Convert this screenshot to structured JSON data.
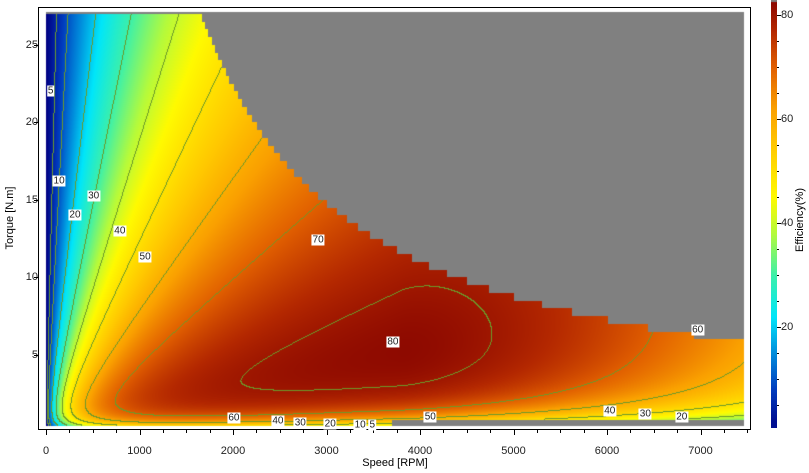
{
  "chart_data": {
    "type": "heatmap",
    "title": "",
    "xlabel": "Speed [RPM]",
    "ylabel": "Torque [N.m]",
    "colorbar_label": "Efficiency(%)",
    "xlim": [
      0,
      7500
    ],
    "ylim": [
      0,
      27.5
    ],
    "clim": [
      2,
      82
    ],
    "xticks": [
      "0",
      "1000",
      "2000",
      "3000",
      "4000",
      "5000",
      "6000",
      "7000"
    ],
    "yticks": [
      "5",
      "10",
      "15",
      "20",
      "25"
    ],
    "cticks": [
      "20",
      "40",
      "60",
      "80"
    ],
    "contour_levels": [
      5,
      10,
      20,
      30,
      40,
      50,
      60,
      70,
      80
    ],
    "peak_efficiency": {
      "speed": 3800,
      "torque": 5,
      "value": 83
    },
    "max_torque": 27.3,
    "max_power_constant": 45000,
    "invalid_color": "#808080",
    "contour_color": "#6b9a2a",
    "contour_labels": [
      {
        "text": "5",
        "x": 50,
        "y": 22
      },
      {
        "text": "10",
        "x": 140,
        "y": 16.2
      },
      {
        "text": "20",
        "x": 310,
        "y": 14
      },
      {
        "text": "30",
        "x": 510,
        "y": 15.2
      },
      {
        "text": "40",
        "x": 790,
        "y": 13
      },
      {
        "text": "50",
        "x": 1060,
        "y": 11.3
      },
      {
        "text": "70",
        "x": 2910,
        "y": 12.4
      },
      {
        "text": "80",
        "x": 3710,
        "y": 5.8
      },
      {
        "text": "60",
        "x": 6970,
        "y": 6.6
      },
      {
        "text": "60",
        "x": 2010,
        "y": 0.9
      },
      {
        "text": "40",
        "x": 2480,
        "y": 0.7
      },
      {
        "text": "30",
        "x": 2720,
        "y": 0.6
      },
      {
        "text": "20",
        "x": 3040,
        "y": 0.5
      },
      {
        "text": "10",
        "x": 3360,
        "y": 0.45
      },
      {
        "text": "5",
        "x": 3490,
        "y": 0.45
      },
      {
        "text": "50",
        "x": 4110,
        "y": 1.0
      },
      {
        "text": "40",
        "x": 6030,
        "y": 1.35
      },
      {
        "text": "30",
        "x": 6410,
        "y": 1.15
      },
      {
        "text": "20",
        "x": 6800,
        "y": 1.0
      }
    ]
  }
}
